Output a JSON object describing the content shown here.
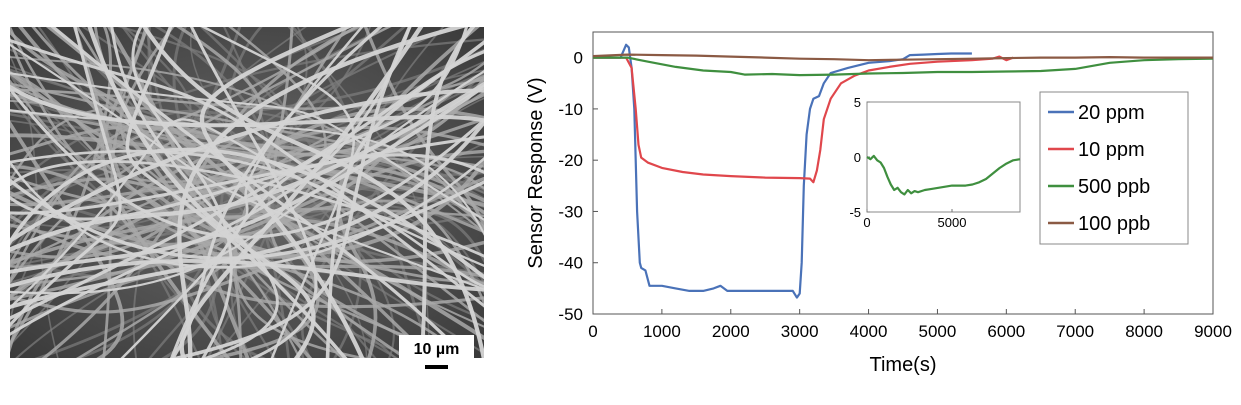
{
  "sem_image": {
    "scale_label": "10 µm"
  },
  "chart_data": [
    {
      "type": "line",
      "xlabel": "Time(s)",
      "ylabel": "Sensor Response (V)",
      "xlim": [
        0,
        9000
      ],
      "ylim": [
        -50,
        5
      ],
      "xticks": [
        0,
        1000,
        2000,
        3000,
        4000,
        5000,
        6000,
        7000,
        8000,
        9000
      ],
      "yticks": [
        0,
        -10,
        -20,
        -30,
        -40,
        -50
      ],
      "grid": false,
      "legend_position": "right",
      "series": [
        {
          "name": "20 ppm",
          "color": "#4a72b8",
          "points": [
            [
              0,
              0
            ],
            [
              400,
              0
            ],
            [
              480,
              2.5
            ],
            [
              520,
              2
            ],
            [
              560,
              -2
            ],
            [
              600,
              -10
            ],
            [
              640,
              -30
            ],
            [
              680,
              -40
            ],
            [
              700,
              -41
            ],
            [
              760,
              -41.5
            ],
            [
              820,
              -44.5
            ],
            [
              900,
              -44.5
            ],
            [
              1000,
              -44.5
            ],
            [
              1200,
              -45
            ],
            [
              1400,
              -45.5
            ],
            [
              1600,
              -45.5
            ],
            [
              1750,
              -45
            ],
            [
              1850,
              -44.5
            ],
            [
              1950,
              -45.5
            ],
            [
              2100,
              -45.5
            ],
            [
              2300,
              -45.5
            ],
            [
              2500,
              -45.5
            ],
            [
              2700,
              -45.5
            ],
            [
              2900,
              -45.5
            ],
            [
              2960,
              -46.8
            ],
            [
              3000,
              -46
            ],
            [
              3030,
              -40
            ],
            [
              3060,
              -25
            ],
            [
              3100,
              -15
            ],
            [
              3150,
              -10
            ],
            [
              3200,
              -8
            ],
            [
              3280,
              -7.5
            ],
            [
              3350,
              -5
            ],
            [
              3450,
              -3
            ],
            [
              3700,
              -2
            ],
            [
              4000,
              -1
            ],
            [
              4300,
              -0.7
            ],
            [
              4400,
              -0.5
            ],
            [
              4500,
              -0.3
            ],
            [
              4600,
              0.5
            ],
            [
              4800,
              0.6
            ],
            [
              5000,
              0.7
            ],
            [
              5200,
              0.8
            ],
            [
              5500,
              0.8
            ]
          ]
        },
        {
          "name": "10 ppm",
          "color": "#e0474c",
          "points": [
            [
              0,
              0
            ],
            [
              480,
              0
            ],
            [
              560,
              -2
            ],
            [
              620,
              -10
            ],
            [
              660,
              -17
            ],
            [
              700,
              -19.5
            ],
            [
              800,
              -20.5
            ],
            [
              1000,
              -21.5
            ],
            [
              1300,
              -22.3
            ],
            [
              1600,
              -22.8
            ],
            [
              2000,
              -23.1
            ],
            [
              2500,
              -23.4
            ],
            [
              3000,
              -23.5
            ],
            [
              3150,
              -23.6
            ],
            [
              3200,
              -24.3
            ],
            [
              3250,
              -22
            ],
            [
              3300,
              -18
            ],
            [
              3350,
              -12
            ],
            [
              3450,
              -8
            ],
            [
              3600,
              -5
            ],
            [
              3800,
              -3.5
            ],
            [
              4000,
              -2.5
            ],
            [
              4300,
              -1.8
            ],
            [
              4600,
              -1.2
            ],
            [
              5000,
              -0.8
            ],
            [
              5500,
              -0.5
            ],
            [
              5800,
              -0.2
            ],
            [
              5900,
              0.2
            ],
            [
              6000,
              -0.5
            ],
            [
              6100,
              0
            ]
          ]
        },
        {
          "name": "500 ppb",
          "color": "#3f8f3f",
          "points": [
            [
              0,
              0
            ],
            [
              500,
              0
            ],
            [
              800,
              -0.8
            ],
            [
              1200,
              -1.8
            ],
            [
              1600,
              -2.5
            ],
            [
              2000,
              -2.8
            ],
            [
              2200,
              -3.3
            ],
            [
              2600,
              -3.2
            ],
            [
              3000,
              -3.4
            ],
            [
              3500,
              -3.3
            ],
            [
              4000,
              -3.1
            ],
            [
              4500,
              -3
            ],
            [
              5000,
              -2.8
            ],
            [
              5500,
              -2.8
            ],
            [
              6000,
              -2.7
            ],
            [
              6500,
              -2.6
            ],
            [
              7000,
              -2.2
            ],
            [
              7500,
              -1
            ],
            [
              8000,
              -0.5
            ],
            [
              8500,
              -0.3
            ],
            [
              9000,
              -0.2
            ]
          ]
        },
        {
          "name": "100 ppb",
          "color": "#8b5a44",
          "points": [
            [
              0,
              0.3
            ],
            [
              500,
              0.6
            ],
            [
              1000,
              0.5
            ],
            [
              1500,
              0.4
            ],
            [
              2000,
              0.2
            ],
            [
              2500,
              0
            ],
            [
              3000,
              -0.2
            ],
            [
              3500,
              -0.3
            ],
            [
              4000,
              -0.5
            ],
            [
              4500,
              -0.4
            ],
            [
              5000,
              -0.3
            ],
            [
              5500,
              -0.2
            ],
            [
              6000,
              -0.1
            ],
            [
              6500,
              0
            ],
            [
              7000,
              0
            ],
            [
              7500,
              0.1
            ],
            [
              8000,
              0
            ],
            [
              8500,
              0
            ],
            [
              9000,
              0
            ]
          ]
        }
      ]
    },
    {
      "type": "line",
      "role": "inset",
      "xlim": [
        0,
        9000
      ],
      "ylim": [
        -5,
        5
      ],
      "xticks": [
        0,
        5000
      ],
      "yticks": [
        5,
        0,
        -5
      ],
      "series": [
        {
          "color": "#3f8f3f",
          "points": [
            [
              0,
              0
            ],
            [
              200,
              -0.2
            ],
            [
              400,
              0.1
            ],
            [
              600,
              -0.3
            ],
            [
              800,
              -0.5
            ],
            [
              1000,
              -1
            ],
            [
              1200,
              -1.8
            ],
            [
              1400,
              -2.5
            ],
            [
              1600,
              -3
            ],
            [
              1800,
              -2.8
            ],
            [
              2000,
              -3.2
            ],
            [
              2200,
              -3.4
            ],
            [
              2400,
              -3
            ],
            [
              2600,
              -3.3
            ],
            [
              2800,
              -3.1
            ],
            [
              3000,
              -3.2
            ],
            [
              3400,
              -3
            ],
            [
              3800,
              -2.9
            ],
            [
              4200,
              -2.8
            ],
            [
              4600,
              -2.7
            ],
            [
              5000,
              -2.6
            ],
            [
              5400,
              -2.6
            ],
            [
              5800,
              -2.6
            ],
            [
              6200,
              -2.5
            ],
            [
              6600,
              -2.3
            ],
            [
              7000,
              -2
            ],
            [
              7400,
              -1.5
            ],
            [
              7800,
              -1
            ],
            [
              8200,
              -0.6
            ],
            [
              8600,
              -0.3
            ],
            [
              9000,
              -0.2
            ]
          ]
        }
      ]
    }
  ]
}
